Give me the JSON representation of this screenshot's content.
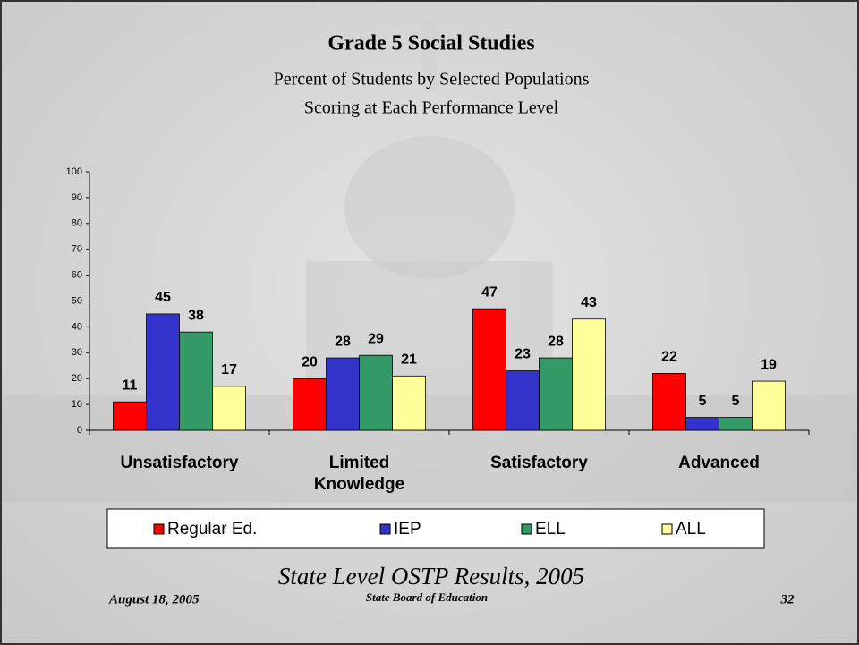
{
  "chart_data": {
    "type": "bar",
    "title": "Grade 5 Social Studies",
    "subtitle": [
      "Percent of Students by Selected Populations",
      "Scoring at Each Performance Level"
    ],
    "categories": [
      "Unsatisfactory",
      "Limited Knowledge",
      "Satisfactory",
      "Advanced"
    ],
    "series": [
      {
        "name": "Regular Ed.",
        "color": "#ff0000",
        "values": [
          11,
          20,
          47,
          22
        ]
      },
      {
        "name": "IEP",
        "color": "#3333cc",
        "values": [
          45,
          28,
          23,
          5
        ]
      },
      {
        "name": "ELL",
        "color": "#339966",
        "values": [
          38,
          29,
          28,
          5
        ]
      },
      {
        "name": "ALL",
        "color": "#ffff99",
        "values": [
          17,
          21,
          43,
          19
        ]
      }
    ],
    "ylim": [
      0,
      100
    ],
    "yticks": [
      0,
      10,
      20,
      30,
      40,
      50,
      60,
      70,
      80,
      90,
      100
    ],
    "grid": false,
    "legend": "bottom"
  },
  "footer": {
    "source": "State Level OSTP Results, 2005",
    "date": "August 18, 2005",
    "organization": "State Board of Education",
    "page_number": "32"
  }
}
